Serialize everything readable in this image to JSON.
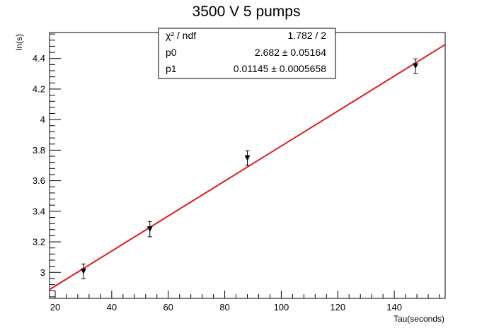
{
  "chart_data": {
    "type": "scatter",
    "title": "3500 V 5 pumps",
    "xlabel": "Tau(seconds)",
    "ylabel": "ln(s)",
    "xlim": [
      18,
      158
    ],
    "ylim": [
      2.83,
      4.57
    ],
    "xticks": [
      20,
      40,
      60,
      80,
      100,
      120,
      140
    ],
    "yticks": [
      3,
      3.2,
      3.4,
      3.6,
      3.8,
      4,
      4.2,
      4.4
    ],
    "grid": false,
    "series": [
      {
        "type": "scatter",
        "marker": "triangle-down",
        "color": "#000000",
        "points": [
          {
            "x": 30,
            "y": 3.007,
            "err": 0.048
          },
          {
            "x": 53.5,
            "y": 3.283,
            "err": 0.05
          },
          {
            "x": 88,
            "y": 3.748,
            "err": 0.048
          },
          {
            "x": 147.5,
            "y": 4.35,
            "err": 0.047
          }
        ]
      },
      {
        "type": "line",
        "color": "#e31a1c",
        "x": [
          18,
          158
        ],
        "y": [
          2.888,
          4.491
        ]
      }
    ],
    "stats_box": {
      "rows": [
        {
          "label": "χ² / ndf",
          "value": "1.782 / 2"
        },
        {
          "label": "p0",
          "value": "2.682 ± 0.05164"
        },
        {
          "label": "p1",
          "value": "0.01145 ± 0.0005658"
        }
      ]
    }
  }
}
